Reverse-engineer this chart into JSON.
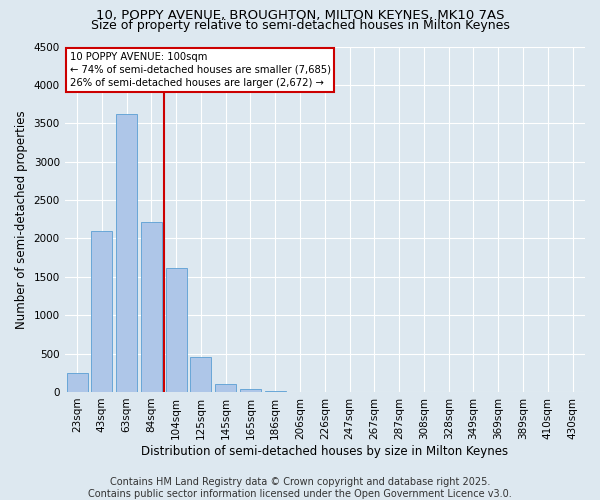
{
  "title_line1": "10, POPPY AVENUE, BROUGHTON, MILTON KEYNES, MK10 7AS",
  "title_line2": "Size of property relative to semi-detached houses in Milton Keynes",
  "xlabel": "Distribution of semi-detached houses by size in Milton Keynes",
  "ylabel": "Number of semi-detached properties",
  "categories": [
    "23sqm",
    "43sqm",
    "63sqm",
    "84sqm",
    "104sqm",
    "125sqm",
    "145sqm",
    "165sqm",
    "186sqm",
    "206sqm",
    "226sqm",
    "247sqm",
    "267sqm",
    "287sqm",
    "308sqm",
    "328sqm",
    "349sqm",
    "369sqm",
    "389sqm",
    "410sqm",
    "430sqm"
  ],
  "values": [
    250,
    2100,
    3620,
    2220,
    1620,
    450,
    105,
    45,
    15,
    0,
    0,
    0,
    0,
    0,
    0,
    0,
    0,
    0,
    0,
    0,
    0
  ],
  "bar_color": "#aec6e8",
  "bar_edge_color": "#5a9fd4",
  "property_line_index": 4,
  "property_size": "100sqm",
  "pct_smaller": 74,
  "n_smaller": "7,685",
  "pct_larger": 26,
  "n_larger": "2,672",
  "annotation_box_color": "#ffffff",
  "annotation_box_edge": "#cc0000",
  "line_color": "#cc0000",
  "ylim": [
    0,
    4500
  ],
  "yticks": [
    0,
    500,
    1000,
    1500,
    2000,
    2500,
    3000,
    3500,
    4000,
    4500
  ],
  "background_color": "#dde8f0",
  "footer_line1": "Contains HM Land Registry data © Crown copyright and database right 2025.",
  "footer_line2": "Contains public sector information licensed under the Open Government Licence v3.0.",
  "grid_color": "#ffffff",
  "title_fontsize": 9.5,
  "subtitle_fontsize": 9,
  "axis_label_fontsize": 8.5,
  "tick_fontsize": 7.5,
  "footer_fontsize": 7
}
